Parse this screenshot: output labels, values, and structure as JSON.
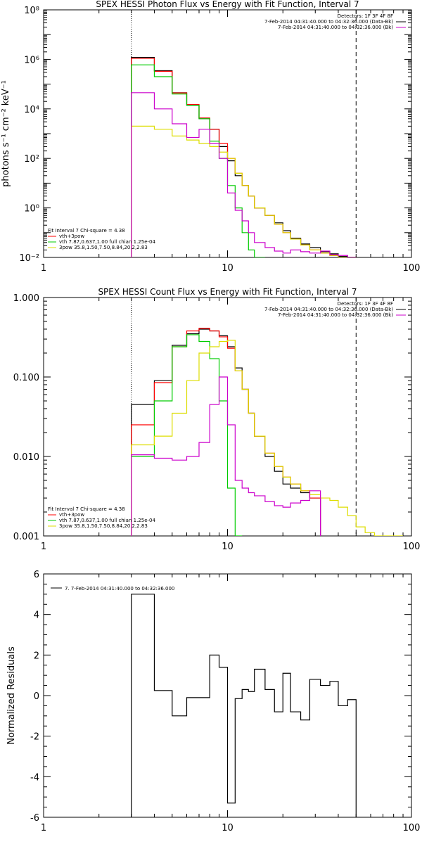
{
  "colors": {
    "total": "#000000",
    "vth": "#00cc00",
    "vth_3pow": "#ff0000",
    "pow3": "#dddd00",
    "pow3_alt": "#cc00cc"
  },
  "chart_data": [
    {
      "type": "line",
      "title": "SPEX HESSI Photon Flux vs Energy with Fit Function, Interval 7",
      "xlabel": "",
      "ylabel": "photons s⁻¹ cm⁻² keV⁻¹",
      "xscale": "log",
      "yscale": "log",
      "xlim": [
        1,
        100
      ],
      "ylim": [
        0.01,
        100000000
      ],
      "xticks": [
        1,
        10,
        100
      ],
      "xtick_labels": [
        "1",
        "10",
        "100"
      ],
      "yticks": [
        0.01,
        1,
        100,
        10000,
        1000000,
        100000000
      ],
      "ytick_labels": [
        "10⁻²",
        "10⁰",
        "10²",
        "10⁴",
        "10⁶",
        "10⁸"
      ],
      "vlines": [
        {
          "x": 3,
          "style": "dotted"
        },
        {
          "x": 50,
          "style": "dashed"
        }
      ],
      "legend_top": [
        "Detectors: 1F 3F 4F 8F",
        "7-Feb-2014 04:31:40.000 to 04:32:36.000 (Data-Bk)",
        "7-Feb-2014 04:31:40.000 to 04:32:36.000 (Bk)"
      ],
      "legend_top_colors": [
        "",
        "#000000",
        "#cc00cc"
      ],
      "legend_fit": [
        "Fit Interval 7   Chi-square = 4.38",
        "vth+3pow",
        "vth 7.87,0.637,1.00  full chian 1.25e-04",
        "3pow 35.8,1.50,7.50,8.84,20.2,2.83"
      ],
      "legend_fit_colors": [
        "",
        "#ff0000",
        "#00cc00",
        "#dddd00"
      ],
      "edges": [
        3,
        4,
        5,
        6,
        7,
        8,
        9,
        10,
        11,
        12,
        13,
        14,
        16,
        18,
        20,
        22,
        25,
        28,
        32,
        36,
        40,
        45,
        50
      ],
      "series": [
        {
          "name": "",
          "color": "#000000",
          "values": [
            1200000,
            350000,
            45000,
            14000,
            4000,
            1500,
            300,
            80,
            20,
            8,
            3,
            1,
            0.5,
            0.25,
            0.12,
            0.06,
            0.035,
            0.025,
            0.017,
            0.014,
            0.011,
            0.009
          ]
        },
        {
          "name": "",
          "color": "#ff0000",
          "values": [
            1100000,
            330000,
            44000,
            15000,
            4300,
            1500,
            400,
            100,
            25,
            8,
            3,
            1,
            0.5,
            0.22,
            0.1,
            0.055,
            0.032,
            0.02,
            0.015,
            0.012,
            0.01,
            0.008
          ]
        },
        {
          "name": "",
          "color": "#00cc00",
          "values": [
            600000,
            200000,
            40000,
            14000,
            4000,
            500,
            100,
            8,
            1,
            0.1,
            0.02,
            0.003
          ]
        },
        {
          "name": "",
          "color": "#dddd00",
          "values": [
            2000,
            1500,
            800,
            550,
            400,
            300,
            180,
            100,
            25,
            8,
            3,
            1,
            0.5,
            0.22,
            0.1,
            0.055,
            0.032,
            0.02,
            0.015,
            0.012,
            0.01,
            0.008,
            0.006,
            0.005
          ]
        },
        {
          "name": "",
          "color": "#cc00cc",
          "values": [
            45000,
            10000,
            2500,
            700,
            1500,
            400,
            100,
            4,
            0.8,
            0.3,
            0.1,
            0.04,
            0.025,
            0.018,
            0.015,
            0.02,
            0.017,
            0.015,
            0.018,
            0.013,
            0.012,
            0.01
          ]
        }
      ]
    },
    {
      "type": "line",
      "title": "SPEX HESSI Count Flux vs Energy with Fit Function, Interval 7",
      "xlabel": "",
      "ylabel": "",
      "xscale": "log",
      "yscale": "log",
      "xlim": [
        1,
        100
      ],
      "ylim": [
        0.001,
        1.0
      ],
      "xticks": [
        1,
        10,
        100
      ],
      "xtick_labels": [
        "1",
        "10",
        "100"
      ],
      "yticks": [
        0.001,
        0.01,
        0.1,
        1.0
      ],
      "ytick_labels": [
        "0.001",
        "0.010",
        "0.100",
        "1.000"
      ],
      "vlines": [
        {
          "x": 3,
          "style": "dotted"
        },
        {
          "x": 50,
          "style": "dashed"
        }
      ],
      "legend_top": [
        "Detectors: 1F 3F 4F 8F",
        "7-Feb-2014 04:31:40.000 to 04:32:36.000 (Data-Bk)",
        "7-Feb-2014 04:31:40.000 to 04:32:36.000 (Bk)"
      ],
      "legend_top_colors": [
        "",
        "#000000",
        "#cc00cc"
      ],
      "legend_fit": [
        "Fit Interval 7   Chi-square = 4.38",
        "vth+3pow",
        "vth 7.87,0.637,1.00  full chian 1.25e-04",
        "3pow 35.8,1.50,7.50,8.84,20.2,2.83"
      ],
      "legend_fit_colors": [
        "",
        "#ff0000",
        "#00cc00",
        "#dddd00"
      ],
      "edges": [
        3,
        4,
        5,
        6,
        7,
        8,
        9,
        10,
        11,
        12,
        13,
        14,
        16,
        18,
        20,
        22,
        25,
        28,
        32,
        36,
        40,
        45,
        50,
        56,
        63,
        71,
        80,
        90
      ],
      "series": [
        {
          "name": "",
          "color": "#000000",
          "values": [
            0.045,
            0.09,
            0.25,
            0.35,
            0.4,
            0.38,
            0.33,
            0.24,
            0.13,
            0.07,
            0.035,
            0.018,
            0.01,
            0.0065,
            0.0045,
            0.004,
            0.0035,
            0.003
          ]
        },
        {
          "name": "",
          "color": "#ff0000",
          "values": [
            0.025,
            0.085,
            0.24,
            0.38,
            0.41,
            0.38,
            0.32,
            0.23,
            0.12,
            0.07,
            0.035,
            0.018,
            0.011,
            0.0075,
            0.0055,
            0.0045,
            0.0037,
            0.003
          ]
        },
        {
          "name": "",
          "color": "#00cc00",
          "values": [
            0.01,
            0.05,
            0.24,
            0.34,
            0.28,
            0.17,
            0.05,
            0.004,
            0.0007
          ]
        },
        {
          "name": "",
          "color": "#dddd00",
          "values": [
            0.014,
            0.018,
            0.035,
            0.09,
            0.2,
            0.24,
            0.28,
            0.29,
            0.12,
            0.07,
            0.035,
            0.018,
            0.011,
            0.0075,
            0.0055,
            0.0045,
            0.0037,
            0.0033,
            0.003,
            0.0028,
            0.0023,
            0.0018,
            0.0013,
            0.0011,
            0.001,
            0.001,
            0.0009
          ]
        },
        {
          "name": "",
          "color": "#cc00cc",
          "values": [
            0.0105,
            0.0095,
            0.009,
            0.01,
            0.015,
            0.045,
            0.1,
            0.025,
            0.005,
            0.004,
            0.0035,
            0.0032,
            0.0027,
            0.0024,
            0.0023,
            0.0026,
            0.0028,
            0.0037
          ]
        }
      ]
    },
    {
      "type": "line",
      "title": "",
      "xlabel": "",
      "ylabel": "Normalized Residuals",
      "xscale": "log",
      "yscale": "linear",
      "xlim": [
        1,
        100
      ],
      "ylim": [
        -6,
        6
      ],
      "xticks": [
        1,
        10,
        100
      ],
      "xtick_labels": [
        "1",
        "10",
        "100"
      ],
      "yticks": [
        -6,
        -4,
        -2,
        0,
        2,
        4,
        6
      ],
      "ytick_labels": [
        "-6",
        "-4",
        "-2",
        "0",
        "2",
        "4",
        "6"
      ],
      "legend_top": [
        "7.  7-Feb-2014 04:31:40.000 to 04:32:36.000"
      ],
      "edges": [
        3,
        4,
        5,
        6,
        7,
        8,
        9,
        10,
        11,
        12,
        13,
        14,
        16,
        18,
        20,
        22,
        25,
        28,
        32,
        36,
        40,
        45,
        50
      ],
      "series": [
        {
          "name": "",
          "color": "#000000",
          "values": [
            5.0,
            0.25,
            -1.0,
            -0.1,
            -0.1,
            2.0,
            1.4,
            -5.3,
            -0.15,
            0.3,
            0.2,
            1.3,
            0.3,
            -0.8,
            1.1,
            -0.8,
            -1.2,
            0.8,
            0.5,
            0.7,
            -0.5,
            -0.2
          ]
        }
      ]
    }
  ]
}
